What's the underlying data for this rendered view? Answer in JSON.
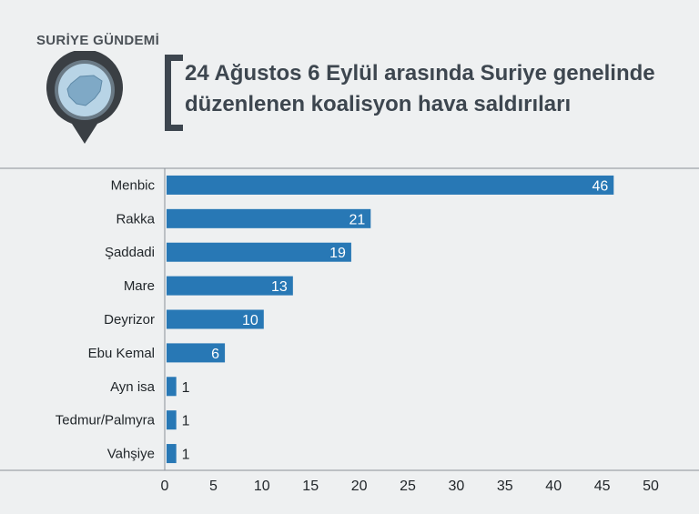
{
  "brand": {
    "logo_text": "SURİYE GÜNDEMİ"
  },
  "chart_data": {
    "type": "bar",
    "orientation": "horizontal",
    "title_lines": [
      "24 Ağustos 6 Eylül arasında Suriye genelinde",
      "düzenlenen koalisyon hava saldırıları"
    ],
    "categories": [
      "Menbic",
      "Rakka",
      "Şaddadi",
      "Mare",
      "Deyrizor",
      "Ebu Kemal",
      "Ayn isa",
      "Tedmur/Palmyra",
      "Vahşiye"
    ],
    "values": [
      46,
      21,
      19,
      13,
      10,
      6,
      1,
      1,
      1
    ],
    "value_labels": [
      "46",
      "21",
      "19",
      "13",
      "10",
      "6",
      "1",
      "1",
      "1"
    ],
    "x_ticks": [
      "0",
      "5",
      "10",
      "15",
      "20",
      "25",
      "30",
      "35",
      "40",
      "45",
      "50"
    ],
    "xlim": [
      0,
      50
    ],
    "bar_color": "#2878b5",
    "grid": false
  }
}
